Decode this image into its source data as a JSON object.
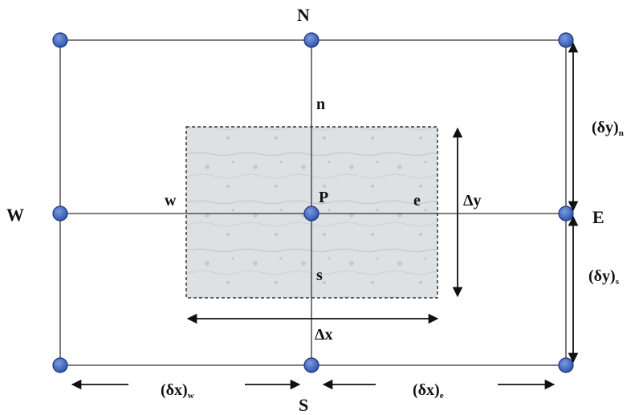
{
  "nodes": {
    "north": "N",
    "south": "S",
    "west": "W",
    "east": "E",
    "center": "P"
  },
  "faces": {
    "north": "n",
    "south": "s",
    "west": "w",
    "east": "e"
  },
  "cell_size": {
    "width": "Δx",
    "height": "Δy"
  },
  "distances": {
    "dx_w": {
      "base": "(δx)",
      "sub": "w"
    },
    "dx_e": {
      "base": "(δx)",
      "sub": "e"
    },
    "dy_n": {
      "base": "(δy)",
      "sub": "n"
    },
    "dy_s": {
      "base": "(δy)",
      "sub": "s"
    }
  },
  "colors": {
    "node_fill": "#3d63b8",
    "node_edge": "#1d347a",
    "line": "#333333",
    "cell_fill": "#d9dde0",
    "cell_border": "#333333"
  }
}
